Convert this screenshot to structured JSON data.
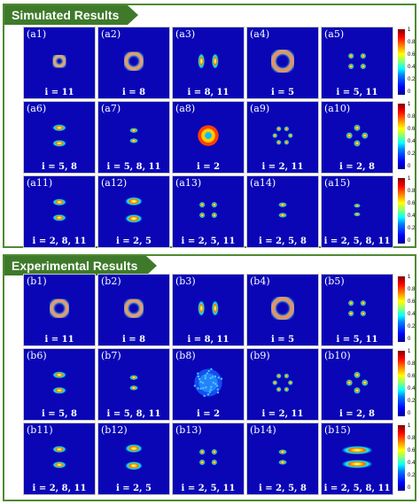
{
  "sections": [
    {
      "title": "Simulated Results",
      "rows": [
        [
          {
            "panel": "(a1)",
            "label": "i = 11",
            "pattern": "ring-small"
          },
          {
            "panel": "(a2)",
            "label": "i = 8",
            "pattern": "ring-medium"
          },
          {
            "panel": "(a3)",
            "label": "i = 8, 11",
            "pattern": "arcs-lr"
          },
          {
            "panel": "(a4)",
            "label": "i = 5",
            "pattern": "ring-large"
          },
          {
            "panel": "(a5)",
            "label": "i = 5, 11",
            "pattern": "four-lobes"
          }
        ],
        [
          {
            "panel": "(a6)",
            "label": "i = 5, 8",
            "pattern": "arcs-tb"
          },
          {
            "panel": "(a7)",
            "label": "i = 5, 8, 11",
            "pattern": "arcs-tb-small"
          },
          {
            "panel": "(a8)",
            "label": "i = 2",
            "pattern": "ring-filled"
          },
          {
            "panel": "(a9)",
            "label": "i = 2, 11",
            "pattern": "six-lobes"
          },
          {
            "panel": "(a10)",
            "label": "i = 2, 8",
            "pattern": "four-lobes-diag"
          }
        ],
        [
          {
            "panel": "(a11)",
            "label": "i = 2, 8, 11",
            "pattern": "arcs-tb"
          },
          {
            "panel": "(a12)",
            "label": "i = 2, 5",
            "pattern": "arcs-tb-large"
          },
          {
            "panel": "(a13)",
            "label": "i = 2, 5, 11",
            "pattern": "four-lobes"
          },
          {
            "panel": "(a14)",
            "label": "i = 2, 5, 8",
            "pattern": "arcs-tb-small"
          },
          {
            "panel": "(a15)",
            "label": "i = 2, 5, 8, 11",
            "pattern": "dots-tb"
          }
        ]
      ],
      "colorbar": [
        "1",
        "0.8",
        "0.6",
        "0.4",
        "0.2",
        "0"
      ]
    },
    {
      "title": "Experimental Results",
      "rows": [
        [
          {
            "panel": "(b1)",
            "label": "i = 11",
            "pattern": "ring-medium"
          },
          {
            "panel": "(b2)",
            "label": "i = 8",
            "pattern": "ring-medium"
          },
          {
            "panel": "(b3)",
            "label": "i = 8, 11",
            "pattern": "arcs-lr"
          },
          {
            "panel": "(b4)",
            "label": "i = 5",
            "pattern": "ring-large"
          },
          {
            "panel": "(b5)",
            "label": "i = 5, 11",
            "pattern": "four-lobes"
          }
        ],
        [
          {
            "panel": "(b6)",
            "label": "i = 5, 8",
            "pattern": "arcs-tb"
          },
          {
            "panel": "(b7)",
            "label": "i = 5, 8, 11",
            "pattern": "arcs-tb-small"
          },
          {
            "panel": "(b8)",
            "label": "i = 2",
            "pattern": "ring-speckle"
          },
          {
            "panel": "(b9)",
            "label": "i = 2, 11",
            "pattern": "six-lobes"
          },
          {
            "panel": "(b10)",
            "label": "i = 2, 8",
            "pattern": "four-lobes-diag"
          }
        ],
        [
          {
            "panel": "(b11)",
            "label": "i = 2, 8, 11",
            "pattern": "arcs-tb"
          },
          {
            "panel": "(b12)",
            "label": "i = 2, 5",
            "pattern": "arcs-tb-large"
          },
          {
            "panel": "(b13)",
            "label": "i = 2, 5, 11",
            "pattern": "four-lobes"
          },
          {
            "panel": "(b14)",
            "label": "i = 2, 5, 8",
            "pattern": "arcs-tb-small"
          },
          {
            "panel": "(b15)",
            "label": "i = 2, 5, 8, 11",
            "pattern": "arcs-tb-wide"
          }
        ]
      ],
      "colorbar": [
        "1",
        "0.8",
        "0.6",
        "0.4",
        "0.2",
        "0"
      ]
    }
  ]
}
